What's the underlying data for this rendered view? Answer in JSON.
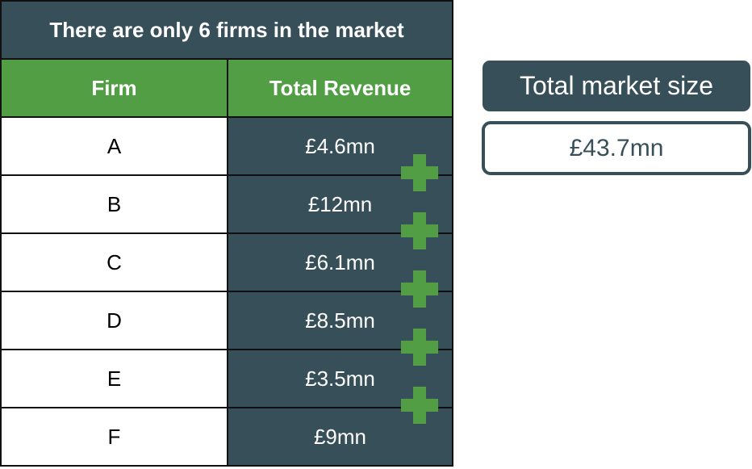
{
  "table": {
    "title": "There are only 6 firms in the market",
    "headers": {
      "firm": "Firm",
      "revenue": "Total Revenue"
    },
    "rows": [
      {
        "firm": "A",
        "revenue": "£4.6mn"
      },
      {
        "firm": "B",
        "revenue": "£12mn"
      },
      {
        "firm": "C",
        "revenue": "£6.1mn"
      },
      {
        "firm": "D",
        "revenue": "£8.5mn"
      },
      {
        "firm": "E",
        "revenue": "£3.5mn"
      },
      {
        "firm": "F",
        "revenue": "£9mn"
      }
    ]
  },
  "summary": {
    "label": "Total market size",
    "value": "£43.7mn"
  },
  "icons": {
    "between_rows": "plus-icon"
  },
  "colors": {
    "dark": "#374f59",
    "green": "#519e45"
  }
}
